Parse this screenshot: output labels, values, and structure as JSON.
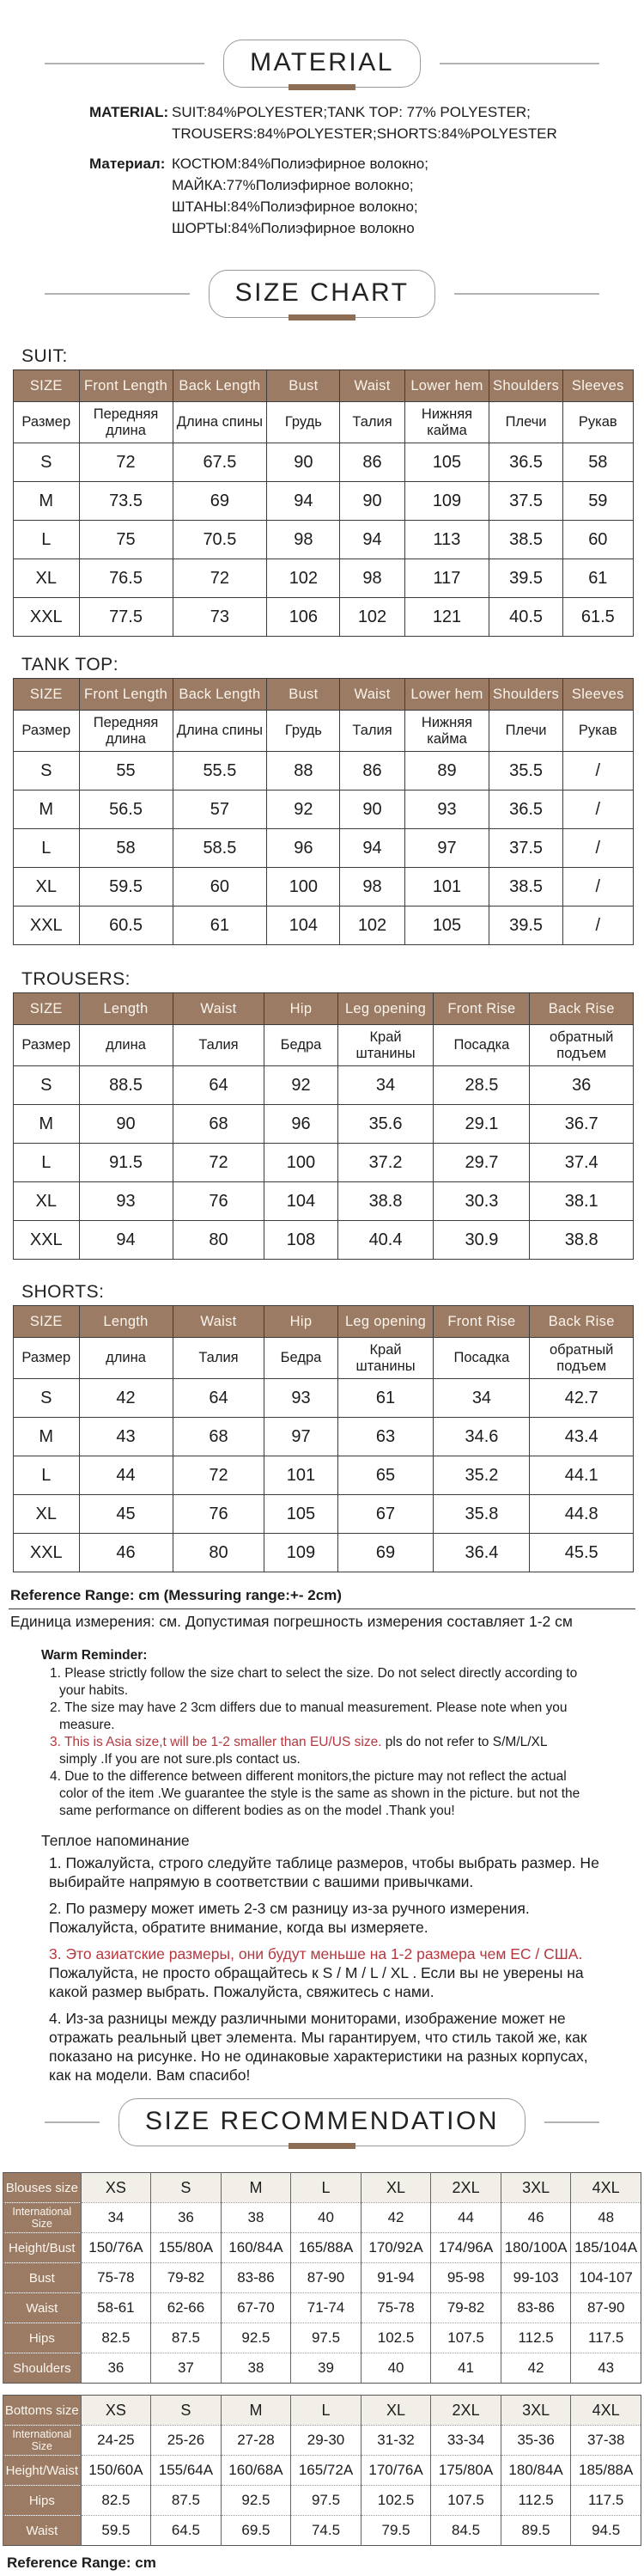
{
  "material": {
    "title": "MATERIAL",
    "en_label": "MATERIAL:",
    "en_lines": "SUIT:84%POLYESTER;TANK TOP: 77% POLYESTER;\nTROUSERS:84%POLYESTER;SHORTS:84%POLYESTER",
    "ru_label": "Материал:",
    "ru_lines": "КОСТЮМ:84%Полиэфирное волокно;\nМАЙКА:77%Полиэфирное волокно;\nШТАНЫ:84%Полиэфирное волокно;\nШОРТЫ:84%Полиэфирное волокно"
  },
  "size_chart": {
    "title": "SIZE CHART",
    "tables": [
      {
        "label": "SUIT:",
        "headers_en": [
          "SIZE",
          "Front Length",
          "Back Length",
          "Bust",
          "Waist",
          "Lower hem",
          "Shoulders",
          "Sleeves"
        ],
        "headers_ru": [
          "Размер",
          "Передняя длина",
          "Длина спины",
          "Грудь",
          "Талия",
          "Нижняя кайма",
          "Плечи",
          "Рукав"
        ],
        "rows": [
          [
            "S",
            "72",
            "67.5",
            "90",
            "86",
            "105",
            "36.5",
            "58"
          ],
          [
            "M",
            "73.5",
            "69",
            "94",
            "90",
            "109",
            "37.5",
            "59"
          ],
          [
            "L",
            "75",
            "70.5",
            "98",
            "94",
            "113",
            "38.5",
            "60"
          ],
          [
            "XL",
            "76.5",
            "72",
            "102",
            "98",
            "117",
            "39.5",
            "61"
          ],
          [
            "XXL",
            "77.5",
            "73",
            "106",
            "102",
            "121",
            "40.5",
            "61.5"
          ]
        ]
      },
      {
        "label": "TANK TOP:",
        "headers_en": [
          "SIZE",
          "Front Length",
          "Back Length",
          "Bust",
          "Waist",
          "Lower hem",
          "Shoulders",
          "Sleeves"
        ],
        "headers_ru": [
          "Размер",
          "Передняя длина",
          "Длина спины",
          "Грудь",
          "Талия",
          "Нижняя кайма",
          "Плечи",
          "Рукав"
        ],
        "rows": [
          [
            "S",
            "55",
            "55.5",
            "88",
            "86",
            "89",
            "35.5",
            "/"
          ],
          [
            "M",
            "56.5",
            "57",
            "92",
            "90",
            "93",
            "36.5",
            "/"
          ],
          [
            "L",
            "58",
            "58.5",
            "96",
            "94",
            "97",
            "37.5",
            "/"
          ],
          [
            "XL",
            "59.5",
            "60",
            "100",
            "98",
            "101",
            "38.5",
            "/"
          ],
          [
            "XXL",
            "60.5",
            "61",
            "104",
            "102",
            "105",
            "39.5",
            "/"
          ]
        ]
      },
      {
        "label": "TROUSERS:",
        "headers_en": [
          "SIZE",
          "Length",
          "Waist",
          "Hip",
          "Leg opening",
          "Front Rise",
          "Back Rise"
        ],
        "headers_ru": [
          "Размер",
          "длина",
          "Талия",
          "Бедра",
          "Край штанины",
          "Посадка",
          "обратный подъем"
        ],
        "rows": [
          [
            "S",
            "88.5",
            "64",
            "92",
            "34",
            "28.5",
            "36"
          ],
          [
            "M",
            "90",
            "68",
            "96",
            "35.6",
            "29.1",
            "36.7"
          ],
          [
            "L",
            "91.5",
            "72",
            "100",
            "37.2",
            "29.7",
            "37.4"
          ],
          [
            "XL",
            "93",
            "76",
            "104",
            "38.8",
            "30.3",
            "38.1"
          ],
          [
            "XXL",
            "94",
            "80",
            "108",
            "40.4",
            "30.9",
            "38.8"
          ]
        ]
      },
      {
        "label": "SHORTS:",
        "headers_en": [
          "SIZE",
          "Length",
          "Waist",
          "Hip",
          "Leg opening",
          "Front Rise",
          "Back Rise"
        ],
        "headers_ru": [
          "Размер",
          "длина",
          "Талия",
          "Бедра",
          "Край штанины",
          "Посадка",
          "обратный подъем"
        ],
        "rows": [
          [
            "S",
            "42",
            "64",
            "93",
            "61",
            "34",
            "42.7"
          ],
          [
            "M",
            "43",
            "68",
            "97",
            "63",
            "34.6",
            "43.4"
          ],
          [
            "L",
            "44",
            "72",
            "101",
            "65",
            "35.2",
            "44.1"
          ],
          [
            "XL",
            "45",
            "76",
            "105",
            "67",
            "35.8",
            "44.8"
          ],
          [
            "XXL",
            "46",
            "80",
            "109",
            "69",
            "36.4",
            "45.5"
          ]
        ]
      }
    ]
  },
  "reference": {
    "en": "Reference Range: cm (Messuring range:+- 2cm)",
    "ru": "Единица измерения: см. Допустимая погрешность измерения составляет 1-2 см"
  },
  "warm_reminder_en": {
    "title": "Warm Reminder:",
    "items": [
      {
        "num": "1.",
        "red": "",
        "text": "Please strictly follow the size chart to select the size. Do not select directly according to your habits."
      },
      {
        "num": "2.",
        "red": "",
        "text": "The size may have 2 3cm differs due to manual measurement. Please note when you measure."
      },
      {
        "num": "3.",
        "red": "This is Asia size,t will be 1-2 smaller than EU/US size.",
        "text": " pls do not refer to S/M/L/XL simply .If you are not sure.pls contact us."
      },
      {
        "num": "4.",
        "red": "",
        "text": "Due to the difference between different monitors,the picture may not reflect the actual color of the item .We guarantee the style is the same as shown in the picture. but not the same performance on different bodies as on the model .Thank you!"
      }
    ]
  },
  "warm_reminder_ru": {
    "title": "Теплое напоминание",
    "items": [
      {
        "num": "1.",
        "red": "",
        "text": "Пожалуйста, строго следуйте таблице размеров, чтобы выбрать размер. Не выбирайте напрямую в соответствии с вашими привычками."
      },
      {
        "num": "2.",
        "red": "",
        "text": "По размеру может иметь 2-3 см разницу из-за ручного измерения. Пожалуйста, обратите внимание, когда вы измеряете."
      },
      {
        "num": "3.",
        "red": "Это азиатские размеры, они будут меньше на 1-2 размера чем ЕС / США.",
        "text": " Пожалуйста, не просто обращайтесь к S / M / L / XL . Если вы не уверены на какой размер выбрать. Пожалуйста, свяжитесь с нами."
      },
      {
        "num": "4.",
        "red": "",
        "text": "Из-за разницы между различными мониторами, изображение может не отражать реальный цвет элемента. Мы гарантируем, что стиль такой же, как показано на рисунке. Но не одинаковые характеристики на разных корпусах, как на модели. Вам спасибо!"
      }
    ]
  },
  "size_recommendation": {
    "title": "SIZE RECOMMENDATION",
    "blouses": {
      "rows": [
        [
          "Blouses size",
          "XS",
          "S",
          "M",
          "L",
          "XL",
          "2XL",
          "3XL",
          "4XL"
        ],
        [
          "International Size",
          "34",
          "36",
          "38",
          "40",
          "42",
          "44",
          "46",
          "48"
        ],
        [
          "Height/Bust",
          "150/76A",
          "155/80A",
          "160/84A",
          "165/88A",
          "170/92A",
          "174/96A",
          "180/100A",
          "185/104A"
        ],
        [
          "Bust",
          "75-78",
          "79-82",
          "83-86",
          "87-90",
          "91-94",
          "95-98",
          "99-103",
          "104-107"
        ],
        [
          "Waist",
          "58-61",
          "62-66",
          "67-70",
          "71-74",
          "75-78",
          "79-82",
          "83-86",
          "87-90"
        ],
        [
          "Hips",
          "82.5",
          "87.5",
          "92.5",
          "97.5",
          "102.5",
          "107.5",
          "112.5",
          "117.5"
        ],
        [
          "Shoulders",
          "36",
          "37",
          "38",
          "39",
          "40",
          "41",
          "42",
          "43"
        ]
      ]
    },
    "bottoms": {
      "rows": [
        [
          "Bottoms size",
          "XS",
          "S",
          "M",
          "L",
          "XL",
          "2XL",
          "3XL",
          "4XL"
        ],
        [
          "International Size",
          "24-25",
          "25-26",
          "27-28",
          "29-30",
          "31-32",
          "33-34",
          "35-36",
          "37-38"
        ],
        [
          "Height/Waist",
          "150/60A",
          "155/64A",
          "160/68A",
          "165/72A",
          "170/76A",
          "175/80A",
          "180/84A",
          "185/88A"
        ],
        [
          "Hips",
          "82.5",
          "87.5",
          "92.5",
          "97.5",
          "102.5",
          "107.5",
          "112.5",
          "117.5"
        ],
        [
          "Waist",
          "59.5",
          "64.5",
          "69.5",
          "74.5",
          "79.5",
          "84.5",
          "89.5",
          "94.5"
        ]
      ]
    },
    "footer": "Reference Range: cm"
  },
  "colors": {
    "header_brown": "#9c7b64",
    "title_bar_brown": "#8d6c54",
    "beige": "#f2efe8",
    "alert_red": "#b5383f"
  }
}
